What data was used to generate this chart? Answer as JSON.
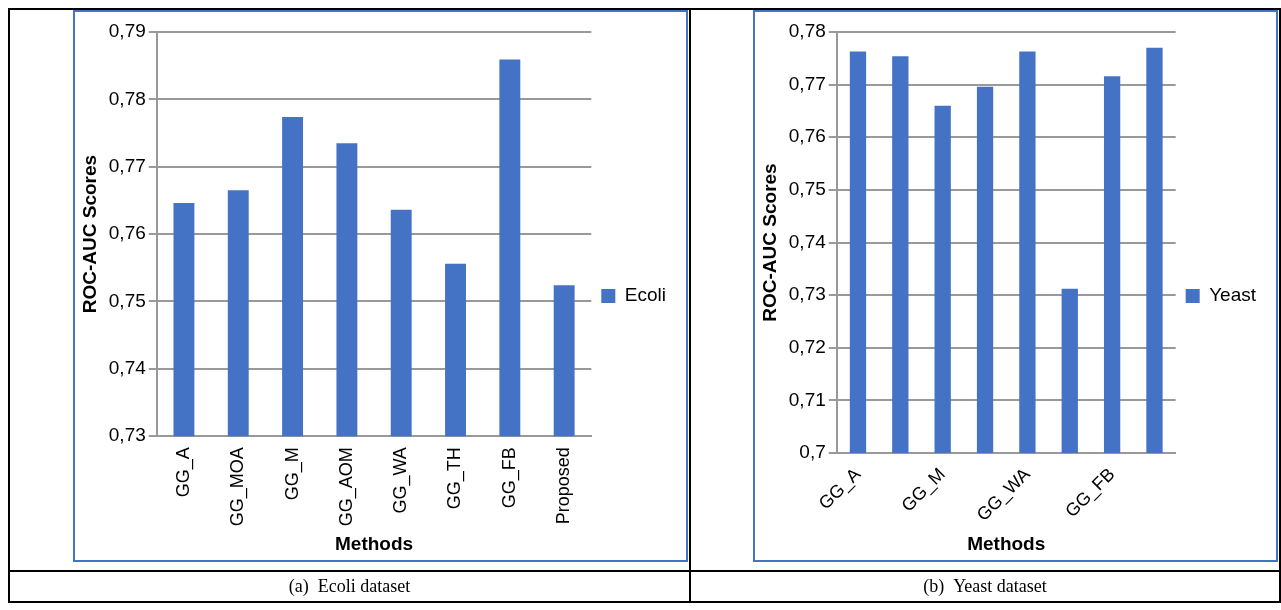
{
  "chart_data": [
    {
      "type": "bar",
      "categories": [
        "GG_A",
        "GG_MOA",
        "GG_M",
        "GG_AOM",
        "GG_WA",
        "GG_TH",
        "GG_FB",
        "Proposed"
      ],
      "series": [
        {
          "name": "Ecoli",
          "color": "#4472c4",
          "values": [
            0.7646,
            0.7665,
            0.7774,
            0.7735,
            0.7636,
            0.7556,
            0.7859,
            0.7524
          ]
        }
      ],
      "ylim": [
        0.73,
        0.79
      ],
      "yticks": [
        {
          "value": 0.73,
          "label": "0,73"
        },
        {
          "value": 0.74,
          "label": "0,74"
        },
        {
          "value": 0.75,
          "label": "0,75"
        },
        {
          "value": 0.76,
          "label": "0,76"
        },
        {
          "value": 0.77,
          "label": "0,77"
        },
        {
          "value": 0.78,
          "label": "0,78"
        },
        {
          "value": 0.79,
          "label": "0,79"
        }
      ],
      "xlabel": "Methods",
      "ylabel": "ROC-AUC Scores",
      "grid": "y",
      "legend": "right",
      "annotations": [
        "(a)  Ecoli dataset"
      ]
    },
    {
      "type": "bar",
      "categories": [
        "GG_A",
        null,
        "GG_M",
        null,
        "GG_WA",
        null,
        "GG_FB",
        null
      ],
      "series": [
        {
          "name": "Yeast",
          "color": "#4472c4",
          "values": [
            0.7763,
            0.7754,
            0.766,
            0.7696,
            0.7763,
            0.7312,
            0.7716,
            0.777
          ]
        }
      ],
      "ylim": [
        0.7,
        0.78
      ],
      "yticks": [
        {
          "value": 0.7,
          "label": "0,7"
        },
        {
          "value": 0.71,
          "label": "0,71"
        },
        {
          "value": 0.72,
          "label": "0,72"
        },
        {
          "value": 0.73,
          "label": "0,73"
        },
        {
          "value": 0.74,
          "label": "0,74"
        },
        {
          "value": 0.75,
          "label": "0,75"
        },
        {
          "value": 0.76,
          "label": "0,76"
        },
        {
          "value": 0.77,
          "label": "0,77"
        },
        {
          "value": 0.78,
          "label": "0,78"
        }
      ],
      "xlabel": "Methods",
      "ylabel": "ROC-AUC Scores",
      "grid": "y",
      "legend": "right",
      "annotations": [
        "(b)  Yeast dataset"
      ]
    }
  ]
}
